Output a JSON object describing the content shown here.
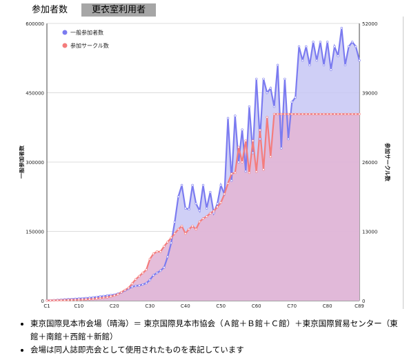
{
  "tabs": [
    {
      "label": "参加者数",
      "active": true
    },
    {
      "label": "更衣室利用者",
      "active": false
    }
  ],
  "notes": [
    "東京国際見本市会場（晴海）＝ 東京国際見本市協会（Ａ館＋Ｂ館＋Ｃ館）＋東京国際貿易センター（東館＋南館＋西館＋新館）",
    "会場は同人誌即売会として使用されたものを表記しています"
  ],
  "colors": {
    "participants": "#7b7bf0",
    "circles": "#f47c7c",
    "participants_fill": "#c7c7f5",
    "circles_fill": "#e2b6d6",
    "tab_inactive": "#a6a6a6"
  },
  "chart_data": {
    "type": "area",
    "x": [
      1,
      2,
      3,
      4,
      5,
      6,
      7,
      8,
      9,
      10,
      11,
      12,
      13,
      14,
      15,
      16,
      17,
      18,
      19,
      20,
      21,
      22,
      23,
      24,
      25,
      26,
      27,
      28,
      29,
      30,
      31,
      32,
      33,
      34,
      35,
      36,
      37,
      38,
      39,
      40,
      41,
      42,
      43,
      44,
      45,
      46,
      47,
      48,
      49,
      50,
      51,
      52,
      53,
      54,
      55,
      56,
      57,
      58,
      59,
      60,
      61,
      62,
      63,
      64,
      65,
      66,
      67,
      68,
      69,
      70,
      71,
      72,
      73,
      74,
      75,
      76,
      77,
      78,
      79,
      80,
      81,
      82,
      83,
      84,
      85,
      86,
      87,
      88,
      89
    ],
    "x_tick_labels": [
      "C1",
      "C10",
      "C20",
      "C30",
      "C40",
      "C50",
      "C60",
      "C70",
      "C80",
      "C89"
    ],
    "x_tick_positions": [
      1,
      10,
      20,
      30,
      40,
      50,
      60,
      70,
      80,
      89
    ],
    "series": [
      {
        "name": "一般参加者数",
        "axis": "left",
        "values": [
          700,
          700,
          1000,
          1500,
          2000,
          2500,
          3000,
          3500,
          4000,
          4500,
          5000,
          5500,
          6000,
          7000,
          8000,
          9000,
          10000,
          11000,
          12000,
          13000,
          15000,
          18000,
          22000,
          26000,
          30000,
          32000,
          33000,
          35000,
          38000,
          45000,
          55000,
          60000,
          65000,
          72000,
          95000,
          125000,
          170000,
          225000,
          250000,
          200000,
          198000,
          250000,
          210000,
          195000,
          250000,
          200000,
          235000,
          190000,
          210000,
          250000,
          230000,
          395000,
          260000,
          400000,
          300000,
          370000,
          280000,
          420000,
          320000,
          480000,
          350000,
          480000,
          450000,
          460000,
          420000,
          510000,
          330000,
          480000,
          350000,
          430000,
          440000,
          550000,
          520000,
          550000,
          510000,
          560000,
          520000,
          560000,
          510000,
          560000,
          500000,
          550000,
          530000,
          590000,
          510000,
          550000,
          560000,
          550000,
          520000
        ]
      },
      {
        "name": "参加サークル数",
        "axis": "right",
        "values": [
          32,
          48,
          64,
          80,
          96,
          112,
          128,
          144,
          160,
          176,
          192,
          240,
          280,
          320,
          400,
          480,
          560,
          640,
          800,
          960,
          1200,
          1600,
          2000,
          2400,
          3200,
          4000,
          4600,
          5200,
          5800,
          7800,
          8800,
          9200,
          9200,
          10200,
          11000,
          11800,
          12600,
          13400,
          14000,
          12600,
          13400,
          14000,
          13400,
          14800,
          15400,
          15800,
          16400,
          16800,
          17600,
          18400,
          20000,
          22000,
          23800,
          24000,
          28800,
          26000,
          30000,
          24000,
          30000,
          24200,
          32000,
          24600,
          34400,
          27000,
          35000,
          35000,
          35000,
          35000,
          35000,
          35000,
          35000,
          35000,
          35000,
          35000,
          35000,
          35000,
          35000,
          35000,
          35000,
          35000,
          35000,
          35000,
          35000,
          35000,
          35000,
          35000,
          35000,
          35000,
          35000
        ]
      }
    ],
    "y_left": {
      "label": "一般参加者数",
      "range": [
        0,
        600000
      ],
      "ticks": [
        "0",
        "150000",
        "300000",
        "450000",
        "600000"
      ]
    },
    "y_right": {
      "label": "参加サークル数",
      "range": [
        0,
        52000
      ],
      "ticks": [
        "0",
        "13000",
        "26000",
        "39000",
        "52000"
      ]
    },
    "grid": true,
    "legend_position": "top-left"
  }
}
